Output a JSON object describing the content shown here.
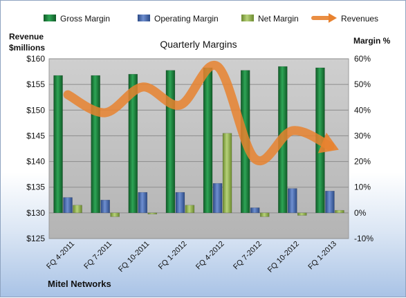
{
  "chart_data": {
    "type": "bar",
    "title": "Quarterly Margins",
    "company": "Mitel Networks",
    "categories": [
      "FQ 4-2011",
      "FQ 7-2011",
      "FQ 10-2011",
      "FQ 1-2012",
      "FQ 4-2012",
      "FQ 7-2012",
      "FQ 10-2012",
      "FQ 1-2013"
    ],
    "left_axis": {
      "label_line1": "Revenue",
      "label_line2": "$millions",
      "ylim": [
        125,
        160
      ],
      "ticks": [
        125,
        130,
        135,
        140,
        145,
        150,
        155,
        160
      ],
      "tick_labels": [
        "$125",
        "$130",
        "$135",
        "$140",
        "$145",
        "$150",
        "$155",
        "$160"
      ]
    },
    "right_axis": {
      "label": "Margin %",
      "ylim": [
        -10,
        60
      ],
      "ticks": [
        -10,
        0,
        10,
        20,
        30,
        40,
        50,
        60
      ],
      "tick_labels": [
        "-10%",
        "0%",
        "10%",
        "20%",
        "30%",
        "40%",
        "50%",
        "60%"
      ]
    },
    "series": [
      {
        "name": "Gross Margin",
        "kind": "bar",
        "axis": "right",
        "color": "#1f7a3a",
        "values": [
          53.5,
          53.5,
          54,
          55.5,
          56.5,
          55.5,
          57,
          56.5
        ]
      },
      {
        "name": "Operating Margin",
        "kind": "bar",
        "axis": "right",
        "color": "#3f62a8",
        "values": [
          6,
          5,
          8,
          8,
          11.5,
          2,
          9.5,
          8.5
        ]
      },
      {
        "name": "Net Margin",
        "kind": "bar",
        "axis": "right",
        "color": "#8fae4a",
        "values": [
          3,
          -1.5,
          -0.5,
          3,
          31,
          -1.5,
          -1,
          1
        ]
      },
      {
        "name": "Revenues",
        "kind": "line",
        "axis": "left",
        "color": "#e8822f",
        "values": [
          153,
          149.5,
          154.5,
          151,
          158.5,
          140.5,
          146,
          143
        ]
      }
    ],
    "legend_position": "top",
    "grid": true
  }
}
